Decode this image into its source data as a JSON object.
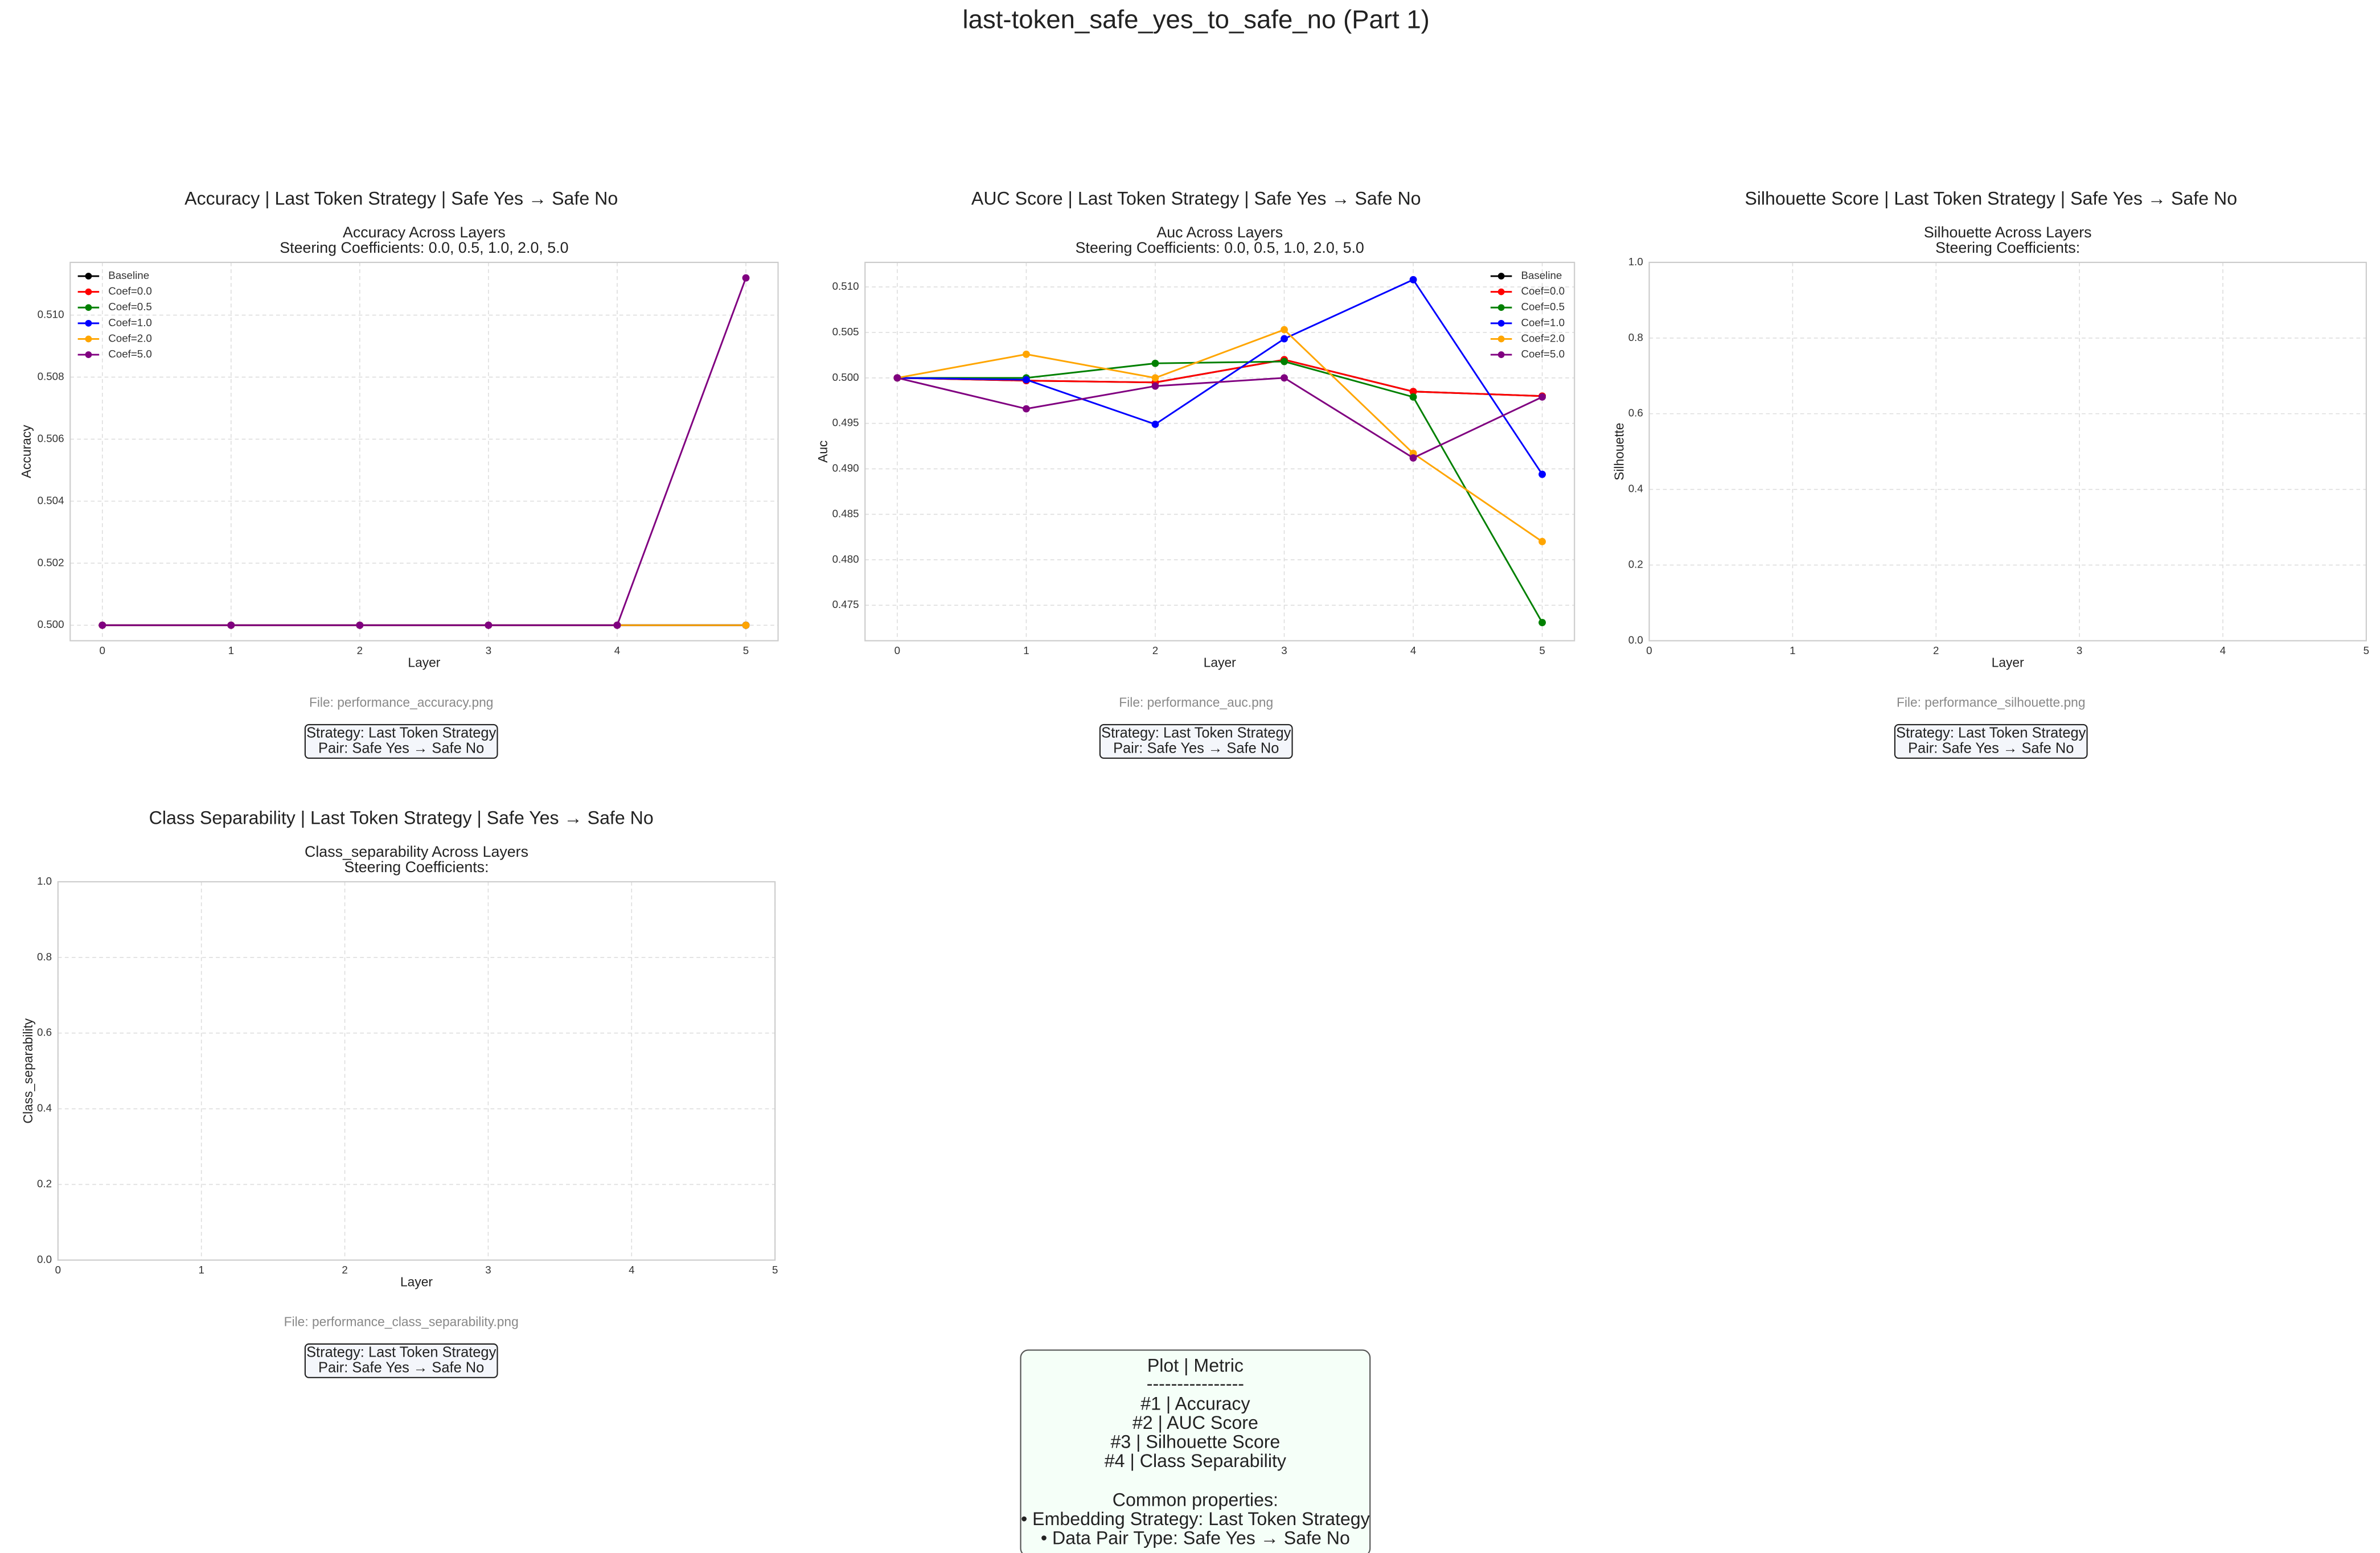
{
  "title": "last-token_safe_yes_to_safe_no (Part 1)",
  "chart_data": [
    {
      "type": "line",
      "heading": "Accuracy | Last Token Strategy | Safe Yes → Safe No",
      "title": "Accuracy Across Layers",
      "subtitle": "Steering Coefficients: 0.0, 0.5, 1.0, 2.0, 5.0",
      "xlabel": "Layer",
      "ylabel": "Accuracy",
      "x": [
        0,
        1,
        2,
        3,
        4,
        5
      ],
      "xlim": [
        -0.25,
        5.25
      ],
      "xticks": [
        0,
        1,
        2,
        3,
        4,
        5
      ],
      "ylim": [
        0.4995,
        0.5117
      ],
      "yticks": [
        {
          "value": 0.5,
          "label": "0.500"
        },
        0.502,
        0.504,
        0.506,
        0.508,
        {
          "value": 0.51,
          "label": "0.510"
        }
      ],
      "grid": true,
      "legend": "upper left",
      "series": [
        {
          "name": "Baseline",
          "color": "#000000",
          "values": [
            0.5,
            0.5,
            0.5,
            0.5,
            0.5,
            0.5
          ]
        },
        {
          "name": "Coef=0.0",
          "color": "#ff0000",
          "values": [
            0.5,
            0.5,
            0.5,
            0.5,
            0.5,
            0.5
          ]
        },
        {
          "name": "Coef=0.5",
          "color": "#008000",
          "values": [
            0.5,
            0.5,
            0.5,
            0.5,
            0.5,
            0.5
          ]
        },
        {
          "name": "Coef=1.0",
          "color": "#0000ff",
          "values": [
            0.5,
            0.5,
            0.5,
            0.5,
            0.5,
            0.5
          ]
        },
        {
          "name": "Coef=2.0",
          "color": "#ffa500",
          "values": [
            0.5,
            0.5,
            0.5,
            0.5,
            0.5,
            0.5
          ]
        },
        {
          "name": "Coef=5.0",
          "color": "#800080",
          "values": [
            0.5,
            0.5,
            0.5,
            0.5,
            0.5,
            0.5112
          ]
        }
      ],
      "file": "File: performance_accuracy.png",
      "info": [
        "Strategy: Last Token Strategy",
        "Pair: Safe Yes → Safe No"
      ]
    },
    {
      "type": "line",
      "heading": "AUC Score | Last Token Strategy | Safe Yes → Safe No",
      "title": "Auc Across Layers",
      "subtitle": "Steering Coefficients: 0.0, 0.5, 1.0, 2.0, 5.0",
      "xlabel": "Layer",
      "ylabel": "Auc",
      "x": [
        0,
        1,
        2,
        3,
        4,
        5
      ],
      "xlim": [
        -0.25,
        5.25
      ],
      "xticks": [
        0,
        1,
        2,
        3,
        4,
        5
      ],
      "ylim": [
        0.4711,
        0.5127
      ],
      "yticks": [
        0.475,
        {
          "value": 0.48,
          "label": "0.480"
        },
        0.485,
        {
          "value": 0.49,
          "label": "0.490"
        },
        0.495,
        {
          "value": 0.5,
          "label": "0.500"
        },
        0.505,
        {
          "value": 0.51,
          "label": "0.510"
        }
      ],
      "grid": true,
      "legend": "upper right",
      "series": [
        {
          "name": "Baseline",
          "color": "#000000",
          "values": [
            0.5,
            0.4997,
            0.4995,
            0.502,
            0.4985,
            0.498
          ]
        },
        {
          "name": "Coef=0.0",
          "color": "#ff0000",
          "values": [
            0.5,
            0.4997,
            0.4995,
            0.502,
            0.4985,
            0.498
          ]
        },
        {
          "name": "Coef=0.5",
          "color": "#008000",
          "values": [
            0.5,
            0.5,
            0.5016,
            0.5018,
            0.4979,
            0.4731
          ]
        },
        {
          "name": "Coef=1.0",
          "color": "#0000ff",
          "values": [
            0.5,
            0.4998,
            0.4949,
            0.5043,
            0.5108,
            0.4894
          ]
        },
        {
          "name": "Coef=2.0",
          "color": "#ffa500",
          "values": [
            0.5,
            0.5026,
            0.5,
            0.5053,
            0.4917,
            0.482
          ]
        },
        {
          "name": "Coef=5.0",
          "color": "#800080",
          "values": [
            0.5,
            0.4966,
            0.4991,
            0.5,
            0.4912,
            0.4979
          ]
        }
      ],
      "file": "File: performance_auc.png",
      "info": [
        "Strategy: Last Token Strategy",
        "Pair: Safe Yes → Safe No"
      ]
    },
    {
      "type": "line",
      "heading": "Silhouette Score | Last Token Strategy | Safe Yes → Safe No",
      "title": "Silhouette Across Layers",
      "subtitle": "Steering Coefficients:",
      "xlabel": "Layer",
      "ylabel": "Silhouette",
      "xlim": [
        0,
        5
      ],
      "xticks": [
        0,
        1,
        2,
        3,
        4,
        5
      ],
      "ylim": [
        0,
        1
      ],
      "yticks": [
        {
          "value": 0,
          "label": "0.0"
        },
        0.2,
        0.4,
        0.6,
        0.8,
        {
          "value": 1,
          "label": "1.0"
        }
      ],
      "grid": true,
      "series": [],
      "file": "File: performance_silhouette.png",
      "info": [
        "Strategy: Last Token Strategy",
        "Pair: Safe Yes → Safe No"
      ]
    },
    {
      "type": "line",
      "heading": "Class Separability | Last Token Strategy | Safe Yes → Safe No",
      "title": "Class_separability Across Layers",
      "subtitle": "Steering Coefficients:",
      "xlabel": "Layer",
      "ylabel": "Class_separability",
      "xlim": [
        0,
        5
      ],
      "xticks": [
        0,
        1,
        2,
        3,
        4,
        5
      ],
      "ylim": [
        0,
        1
      ],
      "yticks": [
        {
          "value": 0,
          "label": "0.0"
        },
        0.2,
        0.4,
        0.6,
        0.8,
        {
          "value": 1,
          "label": "1.0"
        }
      ],
      "grid": true,
      "series": [],
      "file": "File: performance_class_separability.png",
      "info": [
        "Strategy: Last Token Strategy",
        "Pair: Safe Yes → Safe No"
      ]
    }
  ],
  "summary": {
    "header": "Plot | Metric",
    "divider": "----------------",
    "rows": [
      "#1 | Accuracy",
      "#2 | AUC Score",
      "#3 | Silhouette Score",
      "#4 | Class Separability"
    ],
    "properties_title": "Common properties:",
    "properties": [
      "• Embedding Strategy: Last Token Strategy",
      "• Data Pair Type: Safe Yes → Safe No"
    ]
  }
}
